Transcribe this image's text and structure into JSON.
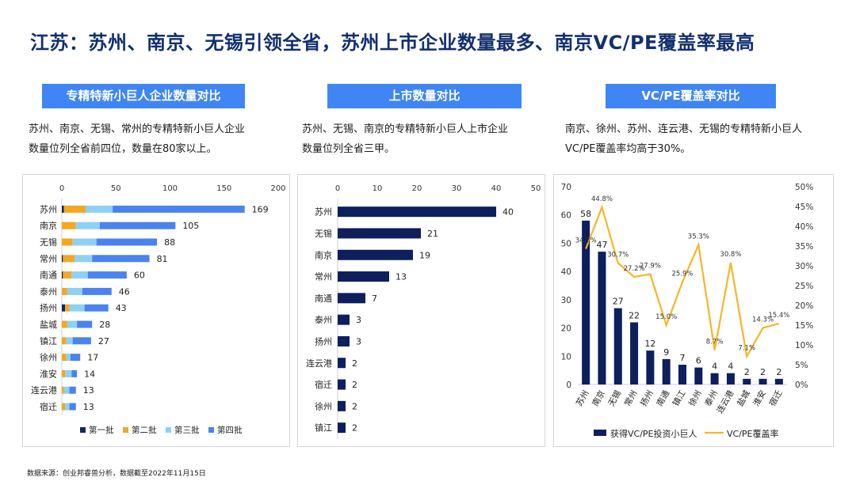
{
  "title": "江苏：苏州、南京、无锡引领全省，苏州上市企业数量最多、南京VC/PE覆盖率最高",
  "sections": [
    {
      "header": "专精特新小巨人企业数量对比",
      "desc_lines": [
        "苏州、南京、无锡、常州的专精特新小巨人企业",
        "数量位列全省前四位，数量在80家以上。"
      ]
    },
    {
      "header": "上市数量对比",
      "desc_lines": [
        "苏州、无锡、南京的专精特新小巨人上市企业",
        "数量位列全省三甲。"
      ]
    },
    {
      "header": "VC/PE覆盖率对比",
      "desc_lines": [
        "南京、徐州、苏州、连云港、无锡的专精特新小巨人",
        "VC/PE覆盖率均高于30%。"
      ]
    }
  ],
  "source": "数据来源：创业邦睿兽分析，数据截至2022年11月15日",
  "colors": {
    "title": "#12306e",
    "header_bg": "#3f86f4",
    "batch1": "#14285c",
    "batch2": "#f5a623",
    "batch3": "#8fd0f5",
    "batch4": "#4a83ee",
    "navy": "#0d1f5c",
    "line": "#f7b528"
  },
  "chart_data": [
    {
      "type": "bar",
      "orientation": "horizontal",
      "stacked": true,
      "categories": [
        "苏州",
        "南京",
        "无锡",
        "常州",
        "南通",
        "泰州",
        "扬州",
        "盐城",
        "镇江",
        "徐州",
        "淮安",
        "连云港",
        "宿迁"
      ],
      "series": [
        {
          "name": "第一批",
          "values": [
            2,
            0,
            0,
            1,
            1,
            0,
            3,
            0,
            0,
            0,
            0,
            0,
            0
          ]
        },
        {
          "name": "第二批",
          "values": [
            20,
            13,
            10,
            11,
            8,
            5,
            4,
            5,
            4,
            4,
            3,
            2,
            3
          ]
        },
        {
          "name": "第三批",
          "values": [
            25,
            22,
            22,
            16,
            15,
            14,
            14,
            9,
            6,
            4,
            6,
            5,
            4
          ]
        },
        {
          "name": "第四批",
          "values": [
            122,
            70,
            56,
            53,
            36,
            27,
            22,
            14,
            17,
            9,
            5,
            6,
            6
          ]
        }
      ],
      "totals": [
        169,
        105,
        88,
        81,
        60,
        46,
        43,
        28,
        27,
        17,
        14,
        13,
        13
      ],
      "xlim": [
        0,
        200
      ],
      "xticks": [
        0,
        50,
        100,
        150,
        200
      ],
      "grid": false,
      "legend": "bottom"
    },
    {
      "type": "bar",
      "orientation": "horizontal",
      "categories": [
        "苏州",
        "无锡",
        "南京",
        "常州",
        "南通",
        "泰州",
        "扬州",
        "连云港",
        "宿迁",
        "徐州",
        "镇江"
      ],
      "values": [
        40,
        21,
        19,
        13,
        7,
        3,
        3,
        2,
        2,
        2,
        2
      ],
      "xlim": [
        0,
        50
      ],
      "xticks": [
        0,
        10,
        20,
        30,
        40,
        50
      ],
      "grid": false
    },
    {
      "type": "bar+line",
      "categories": [
        "苏州",
        "南京",
        "无锡",
        "常州",
        "扬州",
        "南通",
        "镇江",
        "徐州",
        "泰州",
        "连云港",
        "盐城",
        "淮安",
        "宿迁"
      ],
      "series": [
        {
          "name": "获得VC/PE投资小巨人",
          "type": "bar",
          "axis": "left",
          "values": [
            58,
            47,
            27,
            22,
            12,
            9,
            7,
            6,
            4,
            4,
            2,
            2,
            2
          ]
        },
        {
          "name": "VC/PE覆盖率",
          "type": "line",
          "axis": "right",
          "values": [
            34.3,
            44.8,
            30.7,
            27.2,
            27.9,
            15.0,
            25.9,
            35.3,
            8.7,
            30.8,
            7.1,
            14.3,
            15.4
          ],
          "labels": [
            "34.3%",
            "44.8%",
            "30.7%",
            "27.2%",
            "27.9%",
            "15.0%",
            "25.9%",
            "35.3%",
            "8.7%",
            "30.8%",
            "7.1%",
            "14.3%",
            "15.4%"
          ]
        }
      ],
      "ylim_left": [
        0,
        70
      ],
      "yticks_left": [
        0,
        10,
        20,
        30,
        40,
        50,
        60,
        70
      ],
      "ylim_right": [
        0,
        50
      ],
      "yticks_right": [
        "0%",
        "5%",
        "10%",
        "15%",
        "20%",
        "25%",
        "30%",
        "35%",
        "40%",
        "45%",
        "50%"
      ],
      "grid": false,
      "legend": "bottom"
    }
  ]
}
